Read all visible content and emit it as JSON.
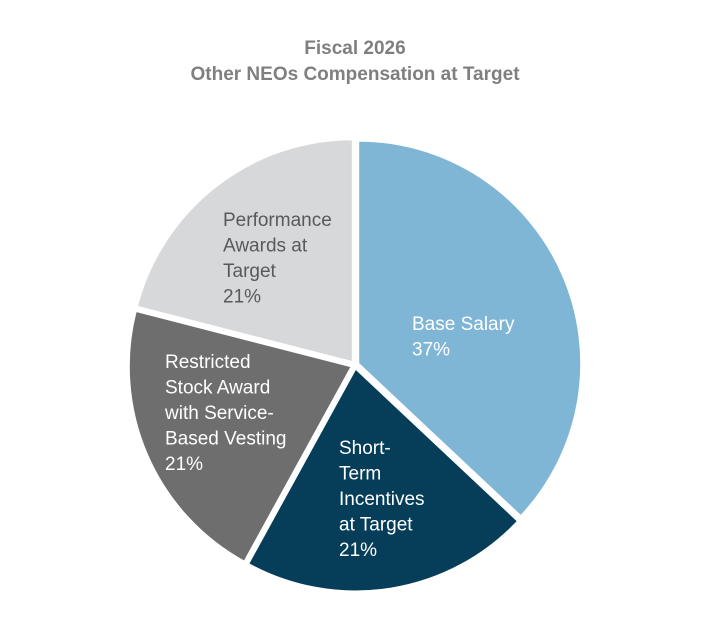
{
  "chart_data": {
    "type": "pie",
    "title": [
      "Fiscal 2026",
      "Other NEOs Compensation at Target"
    ],
    "slices": [
      {
        "label_lines": [
          "Base Salary",
          "37%"
        ],
        "value": 37,
        "color": "#7fb6d6",
        "text_color": "#ffffff"
      },
      {
        "label_lines": [
          "Short-",
          "Term",
          "Incentives",
          "at Target",
          "21%"
        ],
        "value": 21,
        "color": "#063e59",
        "text_color": "#ffffff"
      },
      {
        "label_lines": [
          "Restricted",
          "Stock Award",
          "with Service-",
          "Based Vesting",
          "21%"
        ],
        "value": 21,
        "color": "#6e6e6e",
        "text_color": "#ffffff"
      },
      {
        "label_lines": [
          "Performance",
          "Awards at",
          "Target",
          "21%"
        ],
        "value": 21,
        "color": "#d7d8da",
        "text_color": "#595959"
      }
    ],
    "start": "12 o'clock",
    "direction": "clockwise",
    "legend": "none"
  }
}
